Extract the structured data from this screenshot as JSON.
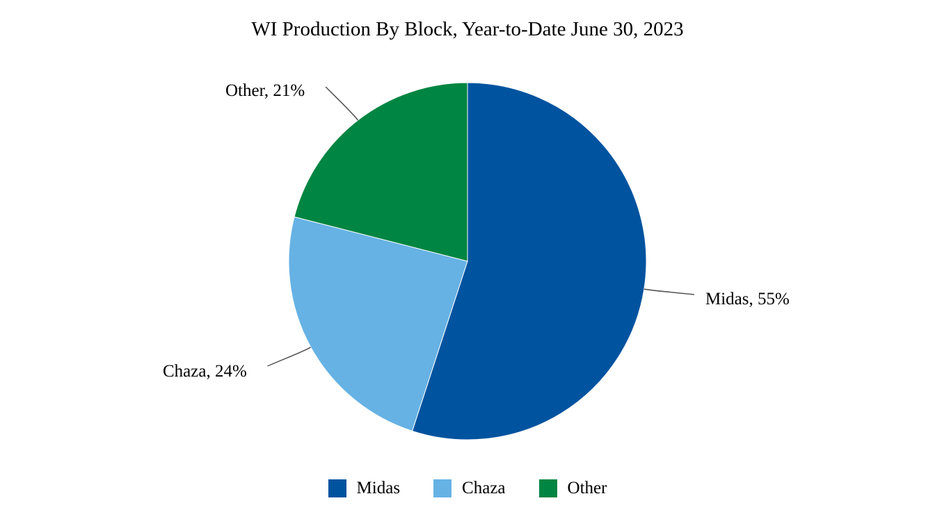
{
  "chart_data": {
    "type": "pie",
    "title": "WI Production By Block, Year-to-Date June 30, 2023",
    "slices": [
      {
        "name": "Midas",
        "value": 55,
        "label": "Midas, 55%",
        "color": "#00539F"
      },
      {
        "name": "Chaza",
        "value": 24,
        "label": "Chaza, 24%",
        "color": "#66B2E4"
      },
      {
        "name": "Other",
        "value": 21,
        "label": "Other, 21%",
        "color": "#008542"
      }
    ],
    "legend_position": "bottom",
    "start_angle": "12 o'clock",
    "direction": "clockwise"
  }
}
